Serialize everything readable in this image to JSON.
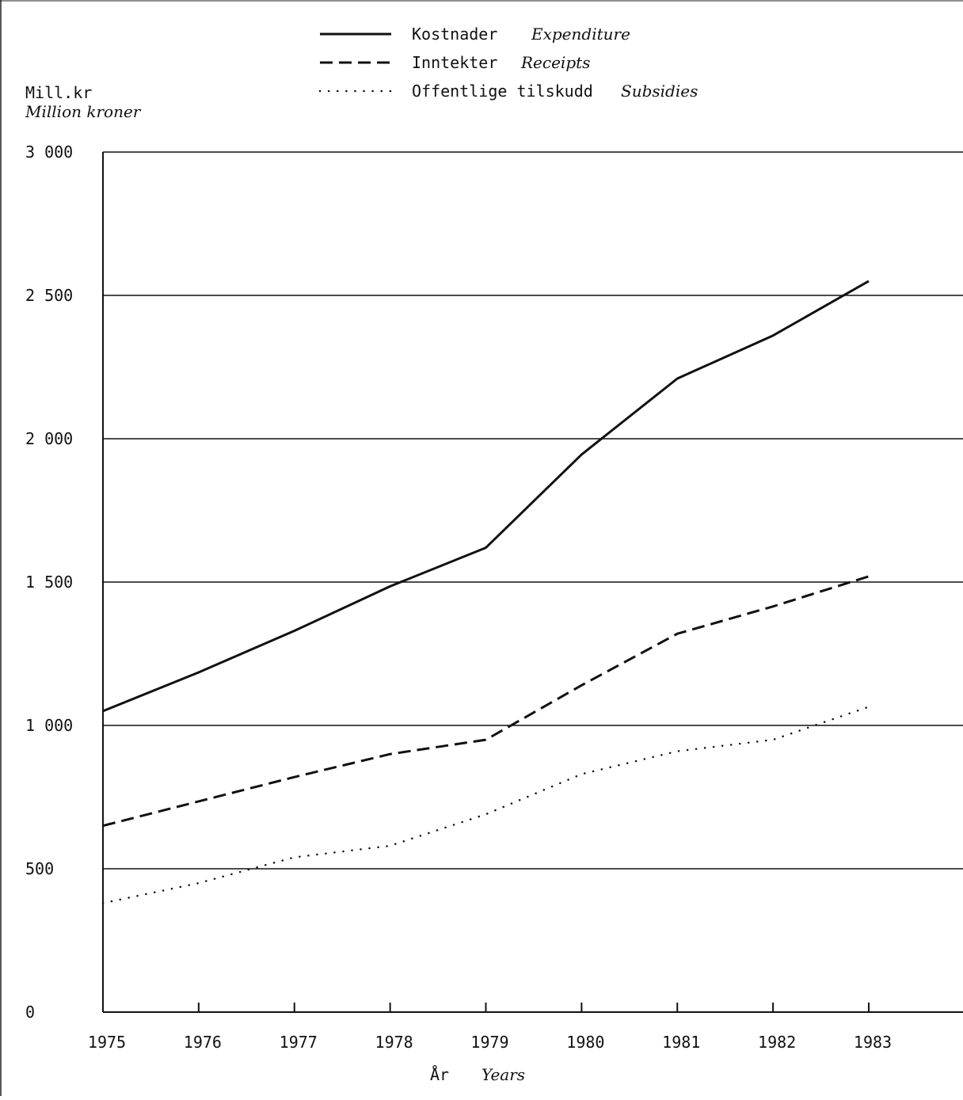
{
  "chart_data": {
    "type": "line",
    "ylabel": "Mill.kr",
    "ylabel_en": "Million kroner",
    "xlabel": "År",
    "xlabel_en": "Years",
    "x": [
      1975,
      1976,
      1977,
      1978,
      1979,
      1980,
      1981,
      1982,
      1983
    ],
    "x_tick_labels": [
      "1975",
      "1976",
      "1977",
      "1978",
      "1979",
      "1980",
      "1981",
      "1982",
      "1983"
    ],
    "ylim": [
      0,
      3000
    ],
    "y_ticks": [
      0,
      500,
      1000,
      1500,
      2000,
      2500,
      3000
    ],
    "y_tick_labels": [
      "0",
      "500",
      "1 000",
      "1 500",
      "2 000",
      "2 500",
      "3 000"
    ],
    "grid": "horizontal",
    "legend_position": "top",
    "series": [
      {
        "name": "Kostnader",
        "name_en": "Expenditure",
        "style": "solid",
        "values": [
          1050,
          1185,
          1330,
          1485,
          1620,
          1945,
          2210,
          2360,
          2550
        ]
      },
      {
        "name": "Inntekter",
        "name_en": "Receipts",
        "style": "dashed",
        "values": [
          650,
          735,
          820,
          900,
          950,
          1140,
          1320,
          1415,
          1520
        ]
      },
      {
        "name": "Offentlige tilskudd",
        "name_en": "Subsidies",
        "style": "dotted",
        "values": [
          380,
          450,
          540,
          580,
          690,
          830,
          910,
          950,
          1065
        ]
      }
    ]
  }
}
